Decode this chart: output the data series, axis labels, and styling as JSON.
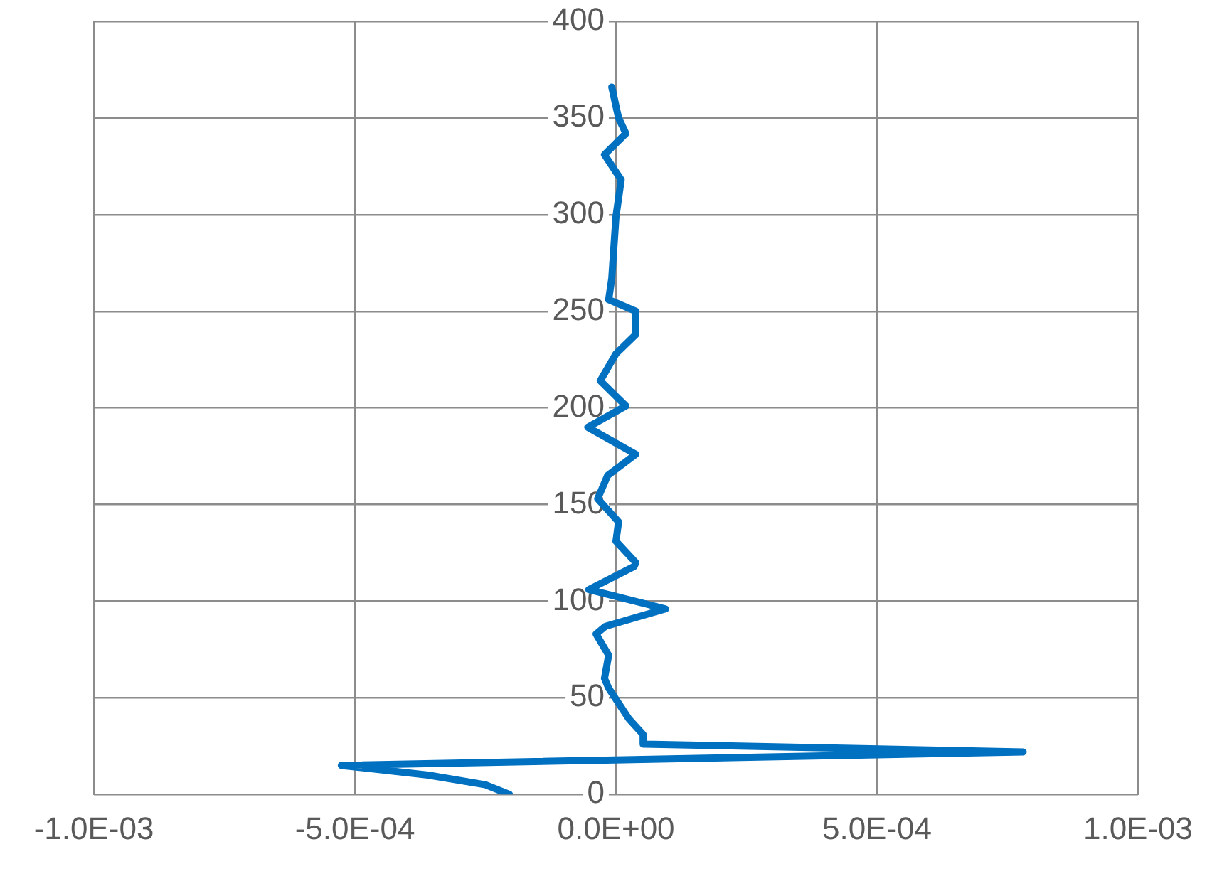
{
  "chart_data": {
    "type": "line",
    "xlim": [
      -0.001,
      0.001
    ],
    "xticks": [
      {
        "value": -0.001,
        "label": "-1.0E-03"
      },
      {
        "value": -0.0005,
        "label": "-5.0E-04"
      },
      {
        "value": 0,
        "label": "0.0E+00"
      },
      {
        "value": 0.0005,
        "label": "5.0E-04"
      },
      {
        "value": 0.001,
        "label": "1.0E-03"
      }
    ],
    "ylim": [
      0,
      400
    ],
    "yticks": [
      0,
      50,
      100,
      150,
      200,
      250,
      300,
      350,
      400
    ],
    "grid": true,
    "legend": false,
    "marker": "none",
    "line_style": "solid",
    "series": [
      {
        "color": "#0070c0",
        "x": [
          -0.000204,
          -0.00025,
          -0.00036,
          -0.000526,
          0.00078,
          5.4e-05,
          5.2e-05,
          2.5e-05,
          -1.4e-05,
          -2.2e-05,
          -1.4e-05,
          -3.8e-05,
          -2e-05,
          9.5e-05,
          -5.2e-05,
          3.5e-05,
          3.8e-05,
          0,
          5e-06,
          -3.5e-05,
          -1.6e-05,
          3.8e-05,
          -5.4e-05,
          1.9e-05,
          -3e-05,
          0,
          3.8e-05,
          3.8e-05,
          -1.4e-05,
          -8e-06,
          0,
          1e-05,
          -2.2e-05,
          1.9e-05,
          5e-06,
          -8e-06
        ],
        "values": [
          0,
          5,
          10,
          15,
          22,
          26,
          31,
          39,
          55,
          60,
          72,
          83,
          87,
          96,
          106,
          118,
          120,
          131,
          141,
          153,
          165,
          176,
          190,
          201,
          214,
          228,
          238,
          250,
          256,
          267,
          299,
          318,
          331,
          342,
          350,
          366
        ]
      }
    ]
  }
}
